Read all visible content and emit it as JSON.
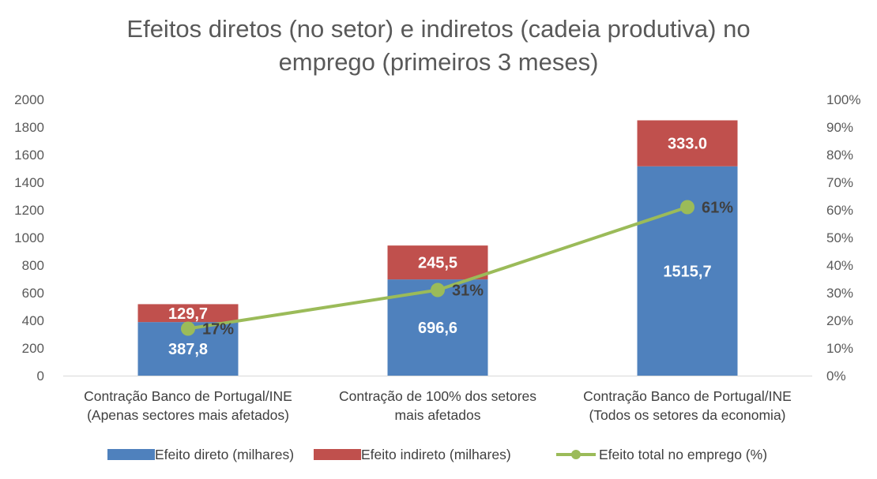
{
  "chart_data": {
    "type": "bar",
    "stacked": true,
    "title_lines": [
      "Efeitos diretos (no setor) e indiretos (cadeia produtiva) no",
      "emprego (primeiros 3 meses)"
    ],
    "categories": [
      [
        "Contração Banco de Portugal/INE",
        "(Apenas sectores mais afetados)"
      ],
      [
        "Contração de 100% dos setores",
        "mais afetados"
      ],
      [
        "Contração Banco de Portugal/INE",
        "(Todos os setores da economia)"
      ]
    ],
    "series": [
      {
        "name": "Efeito direto (milhares)",
        "type": "bar",
        "axis": "left",
        "color": "#4F81BD",
        "values": [
          387.8,
          696.6,
          1515.7
        ],
        "labels": [
          "387,8",
          "696,6",
          "1515,7"
        ]
      },
      {
        "name": "Efeito indireto (milhares)",
        "type": "bar",
        "axis": "left",
        "color": "#C0504D",
        "values": [
          129.7,
          245.5,
          333.0
        ],
        "labels": [
          "129,7",
          "245,5",
          "333.0"
        ]
      },
      {
        "name": "Efeito total no emprego (%)",
        "type": "line",
        "axis": "right",
        "color": "#9BBB59",
        "values": [
          17,
          31,
          61
        ],
        "labels": [
          "17%",
          "31%",
          "61%"
        ]
      }
    ],
    "y_left": {
      "min": 0,
      "max": 2000,
      "step": 200,
      "ticks": [
        "0",
        "200",
        "400",
        "600",
        "800",
        "1000",
        "1200",
        "1400",
        "1600",
        "1800",
        "2000"
      ]
    },
    "y_right": {
      "min": 0,
      "max": 100,
      "step": 10,
      "ticks": [
        "0%",
        "10%",
        "20%",
        "30%",
        "40%",
        "50%",
        "60%",
        "70%",
        "80%",
        "90%",
        "100%"
      ]
    },
    "grid": false,
    "legend_position": "bottom"
  }
}
